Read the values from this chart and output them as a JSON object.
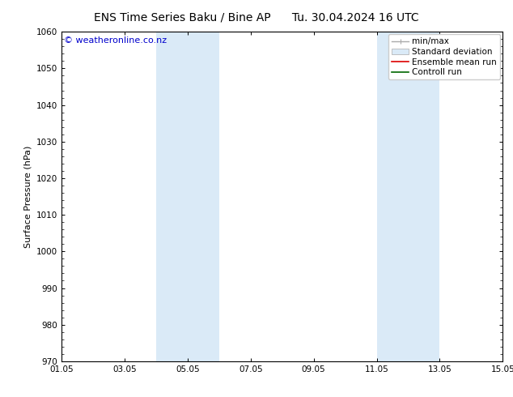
{
  "title_left": "ENS Time Series Baku / Bine AP",
  "title_right": "Tu. 30.04.2024 16 UTC",
  "ylabel": "Surface Pressure (hPa)",
  "ylim": [
    970,
    1060
  ],
  "yticks": [
    970,
    980,
    990,
    1000,
    1010,
    1020,
    1030,
    1040,
    1050,
    1060
  ],
  "xlim_start": 0,
  "xlim_end": 14,
  "xtick_labels": [
    "01.05",
    "03.05",
    "05.05",
    "07.05",
    "09.05",
    "11.05",
    "13.05",
    "15.05"
  ],
  "xtick_positions": [
    0,
    2,
    4,
    6,
    8,
    10,
    12,
    14
  ],
  "shaded_bands": [
    {
      "x_start": 3.0,
      "x_end": 5.0
    },
    {
      "x_start": 10.0,
      "x_end": 12.0
    }
  ],
  "shaded_color": "#daeaf7",
  "copyright_text": "© weatheronline.co.nz",
  "copyright_color": "#0000cc",
  "bg_color": "#ffffff",
  "spine_color": "#000000",
  "tick_color": "#000000",
  "title_fontsize": 10,
  "label_fontsize": 8,
  "tick_fontsize": 7.5,
  "copyright_fontsize": 8,
  "legend_fontsize": 7.5
}
